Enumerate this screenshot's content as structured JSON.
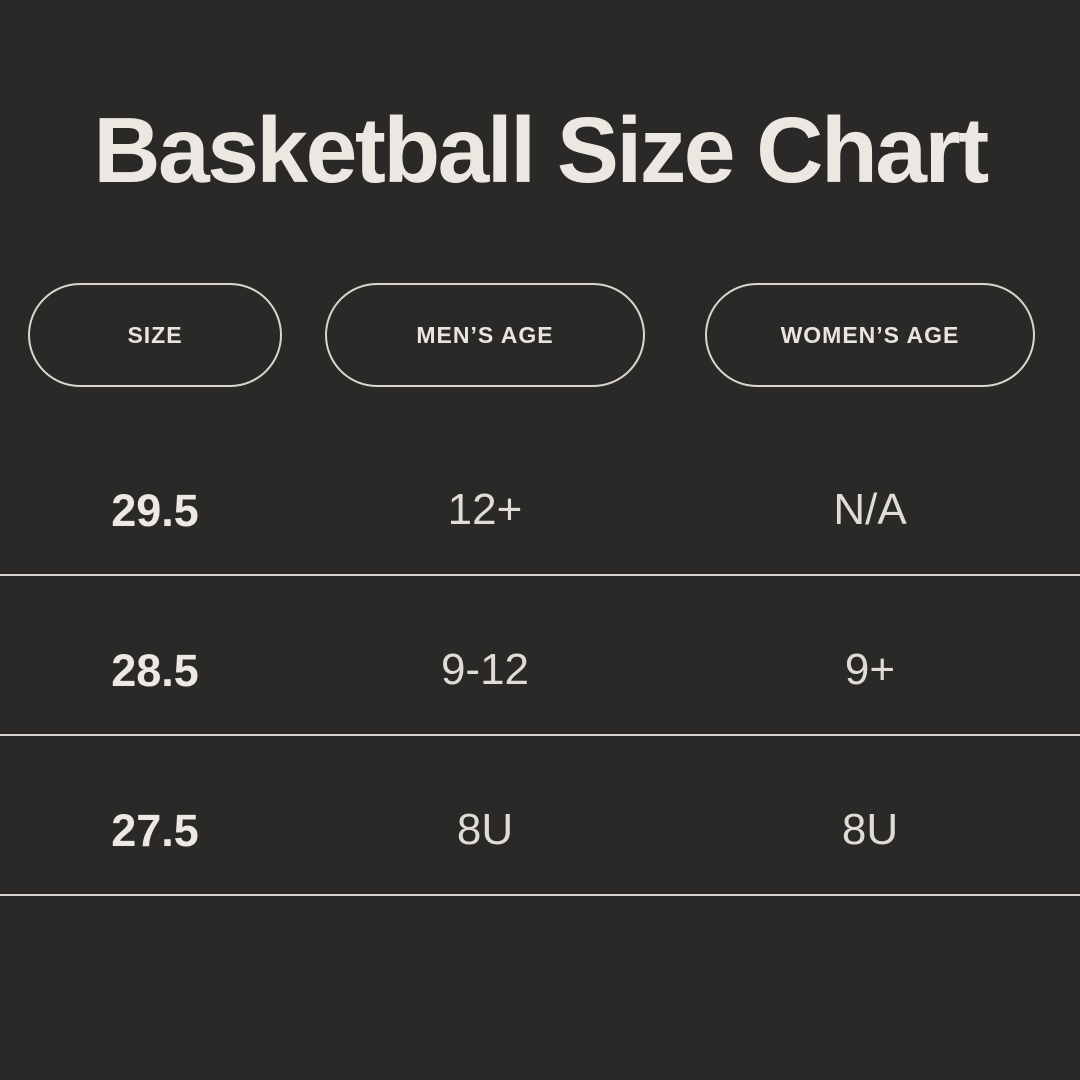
{
  "page": {
    "background_color": "#2a2928",
    "text_color": "#ebe8e1",
    "divider_color": "#d6d3cb",
    "pill_border_color": "#d9d6ce"
  },
  "chart_data": {
    "type": "table",
    "title": "Basketball Size Chart",
    "columns": [
      "SIZE",
      "MEN’S AGE",
      "WOMEN’S AGE"
    ],
    "rows": [
      [
        "29.5",
        "12+",
        "N/A"
      ],
      [
        "28.5",
        "9-12",
        "9+"
      ],
      [
        "27.5",
        "8U",
        "8U"
      ]
    ]
  }
}
